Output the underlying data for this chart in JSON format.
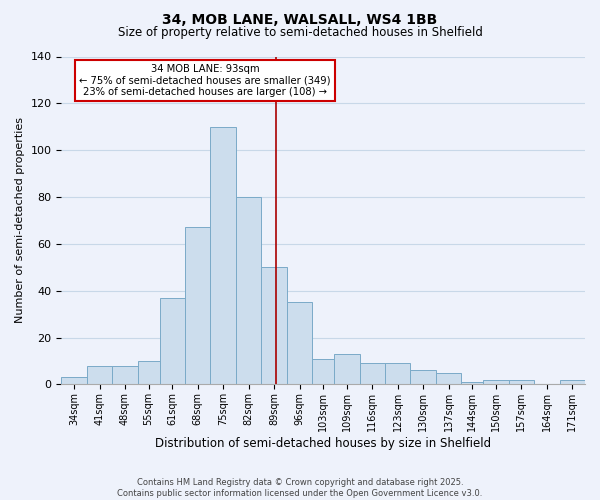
{
  "title1": "34, MOB LANE, WALSALL, WS4 1BB",
  "title2": "Size of property relative to semi-detached houses in Shelfield",
  "xlabel": "Distribution of semi-detached houses by size in Shelfield",
  "ylabel": "Number of semi-detached properties",
  "bin_labels": [
    "34sqm",
    "41sqm",
    "48sqm",
    "55sqm",
    "61sqm",
    "68sqm",
    "75sqm",
    "82sqm",
    "89sqm",
    "96sqm",
    "103sqm",
    "109sqm",
    "116sqm",
    "123sqm",
    "130sqm",
    "137sqm",
    "144sqm",
    "150sqm",
    "157sqm",
    "164sqm",
    "171sqm"
  ],
  "bin_left_edges": [
    34,
    41,
    48,
    55,
    61,
    68,
    75,
    82,
    89,
    96,
    103,
    109,
    116,
    123,
    130,
    137,
    144,
    150,
    157,
    164,
    171
  ],
  "bin_widths": [
    7,
    7,
    7,
    6,
    7,
    7,
    7,
    7,
    7,
    7,
    6,
    7,
    7,
    7,
    7,
    7,
    6,
    7,
    7,
    7,
    7
  ],
  "bar_heights": [
    3,
    8,
    8,
    10,
    37,
    67,
    110,
    80,
    50,
    35,
    11,
    13,
    9,
    9,
    6,
    5,
    1,
    2,
    2,
    0,
    2
  ],
  "bar_color": "#ccdded",
  "bar_edge_color": "#7aaac8",
  "vline_x": 93,
  "vline_color": "#aa0000",
  "annotation_title": "34 MOB LANE: 93sqm",
  "annotation_line1": "← 75% of semi-detached houses are smaller (349)",
  "annotation_line2": "23% of semi-detached houses are larger (108) →",
  "annotation_box_edge_color": "#cc0000",
  "annotation_box_fill": "white",
  "grid_color": "#c8d8e8",
  "background_color": "#eef2fb",
  "ylim": [
    0,
    140
  ],
  "yticks": [
    0,
    20,
    40,
    60,
    80,
    100,
    120,
    140
  ],
  "footer1": "Contains HM Land Registry data © Crown copyright and database right 2025.",
  "footer2": "Contains public sector information licensed under the Open Government Licence v3.0."
}
